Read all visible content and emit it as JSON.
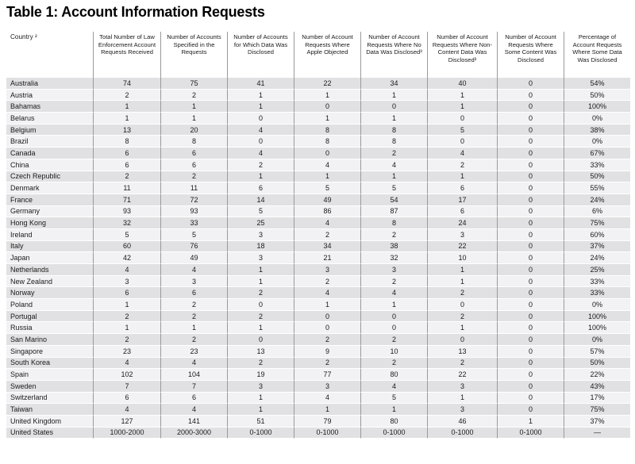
{
  "title": "Table 1: Account Information Requests",
  "colors": {
    "row_dark": "#e1e1e3",
    "row_light": "#f2f2f4",
    "divider": "#9a9a9a",
    "text": "#1a1a1a"
  },
  "table": {
    "columns": [
      "Country ²",
      "Total Number of Law Enforcement Account Requests Received",
      "Number of Accounts Specified in the Requests",
      "Number of Accounts for Which Data Was Disclosed",
      "Number of Account Requests Where Apple Objected",
      "Number of Account Requests Where No Data Was Disclosed³",
      "Number of Account Requests Where Non-Content Data Was Disclosed³",
      "Number of Account Requests Where Some Content Was Disclosed",
      "Percentage of Account Requests Where Some Data Was Disclosed"
    ],
    "rows": [
      {
        "country": "Australia",
        "values": [
          "74",
          "75",
          "41",
          "22",
          "34",
          "40",
          "0",
          "54%"
        ]
      },
      {
        "country": "Austria",
        "values": [
          "2",
          "2",
          "1",
          "1",
          "1",
          "1",
          "0",
          "50%"
        ]
      },
      {
        "country": "Bahamas",
        "values": [
          "1",
          "1",
          "1",
          "0",
          "0",
          "1",
          "0",
          "100%"
        ]
      },
      {
        "country": "Belarus",
        "values": [
          "1",
          "1",
          "0",
          "1",
          "1",
          "0",
          "0",
          "0%"
        ]
      },
      {
        "country": "Belgium",
        "values": [
          "13",
          "20",
          "4",
          "8",
          "8",
          "5",
          "0",
          "38%"
        ]
      },
      {
        "country": "Brazil",
        "values": [
          "8",
          "8",
          "0",
          "8",
          "8",
          "0",
          "0",
          "0%"
        ]
      },
      {
        "country": "Canada",
        "values": [
          "6",
          "6",
          "4",
          "0",
          "2",
          "4",
          "0",
          "67%"
        ]
      },
      {
        "country": "China",
        "values": [
          "6",
          "6",
          "2",
          "4",
          "4",
          "2",
          "0",
          "33%"
        ]
      },
      {
        "country": "Czech Republic",
        "values": [
          "2",
          "2",
          "1",
          "1",
          "1",
          "1",
          "0",
          "50%"
        ]
      },
      {
        "country": "Denmark",
        "values": [
          "11",
          "11",
          "6",
          "5",
          "5",
          "6",
          "0",
          "55%"
        ]
      },
      {
        "country": "France",
        "values": [
          "71",
          "72",
          "14",
          "49",
          "54",
          "17",
          "0",
          "24%"
        ]
      },
      {
        "country": "Germany",
        "values": [
          "93",
          "93",
          "5",
          "86",
          "87",
          "6",
          "0",
          "6%"
        ]
      },
      {
        "country": "Hong Kong",
        "values": [
          "32",
          "33",
          "25",
          "4",
          "8",
          "24",
          "0",
          "75%"
        ]
      },
      {
        "country": "Ireland",
        "values": [
          "5",
          "5",
          "3",
          "2",
          "2",
          "3",
          "0",
          "60%"
        ]
      },
      {
        "country": "Italy",
        "values": [
          "60",
          "76",
          "18",
          "34",
          "38",
          "22",
          "0",
          "37%"
        ]
      },
      {
        "country": "Japan",
        "values": [
          "42",
          "49",
          "3",
          "21",
          "32",
          "10",
          "0",
          "24%"
        ]
      },
      {
        "country": "Netherlands",
        "values": [
          "4",
          "4",
          "1",
          "3",
          "3",
          "1",
          "0",
          "25%"
        ]
      },
      {
        "country": "New Zealand",
        "values": [
          "3",
          "3",
          "1",
          "2",
          "2",
          "1",
          "0",
          "33%"
        ]
      },
      {
        "country": "Norway",
        "values": [
          "6",
          "6",
          "2",
          "4",
          "4",
          "2",
          "0",
          "33%"
        ]
      },
      {
        "country": "Poland",
        "values": [
          "1",
          "2",
          "0",
          "1",
          "1",
          "0",
          "0",
          "0%"
        ]
      },
      {
        "country": "Portugal",
        "values": [
          "2",
          "2",
          "2",
          "0",
          "0",
          "2",
          "0",
          "100%"
        ]
      },
      {
        "country": "Russia",
        "values": [
          "1",
          "1",
          "1",
          "0",
          "0",
          "1",
          "0",
          "100%"
        ]
      },
      {
        "country": "San Marino",
        "values": [
          "2",
          "2",
          "0",
          "2",
          "2",
          "0",
          "0",
          "0%"
        ]
      },
      {
        "country": "Singapore",
        "values": [
          "23",
          "23",
          "13",
          "9",
          "10",
          "13",
          "0",
          "57%"
        ]
      },
      {
        "country": "South Korea",
        "values": [
          "4",
          "4",
          "2",
          "2",
          "2",
          "2",
          "0",
          "50%"
        ]
      },
      {
        "country": "Spain",
        "values": [
          "102",
          "104",
          "19",
          "77",
          "80",
          "22",
          "0",
          "22%"
        ]
      },
      {
        "country": "Sweden",
        "values": [
          "7",
          "7",
          "3",
          "3",
          "4",
          "3",
          "0",
          "43%"
        ]
      },
      {
        "country": "Switzerland",
        "values": [
          "6",
          "6",
          "1",
          "4",
          "5",
          "1",
          "0",
          "17%"
        ]
      },
      {
        "country": "Taiwan",
        "values": [
          "4",
          "4",
          "1",
          "1",
          "1",
          "3",
          "0",
          "75%"
        ]
      },
      {
        "country": "United Kingdom",
        "values": [
          "127",
          "141",
          "51",
          "79",
          "80",
          "46",
          "1",
          "37%"
        ]
      },
      {
        "country": "United States",
        "values": [
          "1000-2000",
          "2000-3000",
          "0-1000",
          "0-1000",
          "0-1000",
          "0-1000",
          "0-1000",
          "—"
        ]
      }
    ]
  }
}
